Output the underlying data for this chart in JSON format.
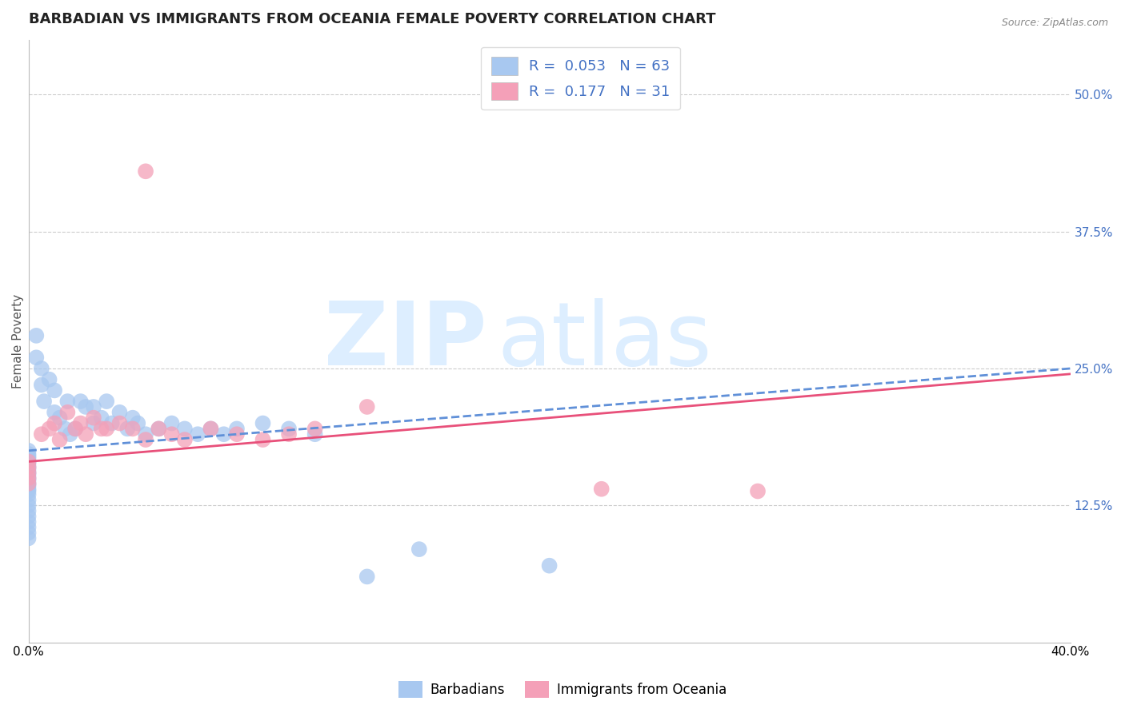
{
  "title": "BARBADIAN VS IMMIGRANTS FROM OCEANIA FEMALE POVERTY CORRELATION CHART",
  "source": "Source: ZipAtlas.com",
  "ylabel": "Female Poverty",
  "right_yticks": [
    "50.0%",
    "37.5%",
    "25.0%",
    "12.5%"
  ],
  "right_ytick_vals": [
    0.5,
    0.375,
    0.25,
    0.125
  ],
  "xmin": 0.0,
  "xmax": 0.4,
  "ymin": 0.0,
  "ymax": 0.55,
  "color_blue": "#A8C8F0",
  "color_pink": "#F4A0B8",
  "color_blue_line": "#6090D8",
  "color_pink_line": "#E8507A",
  "color_blue_text": "#4472C4",
  "background_color": "#FFFFFF",
  "grid_color": "#CCCCCC",
  "title_fontsize": 13,
  "axis_label_fontsize": 11,
  "tick_fontsize": 11,
  "barbadians_x": [
    0.0,
    0.0,
    0.0,
    0.0,
    0.0,
    0.0,
    0.0,
    0.0,
    0.0,
    0.0,
    0.0,
    0.0,
    0.0,
    0.0,
    0.0,
    0.0,
    0.0,
    0.0,
    0.0,
    0.0,
    0.0,
    0.0,
    0.0,
    0.0,
    0.0,
    0.003,
    0.003,
    0.005,
    0.005,
    0.006,
    0.008,
    0.01,
    0.01,
    0.012,
    0.014,
    0.015,
    0.016,
    0.018,
    0.02,
    0.022,
    0.025,
    0.025,
    0.028,
    0.03,
    0.032,
    0.035,
    0.038,
    0.04,
    0.042,
    0.045,
    0.05,
    0.055,
    0.06,
    0.065,
    0.07,
    0.075,
    0.08,
    0.09,
    0.1,
    0.11,
    0.13,
    0.15,
    0.2
  ],
  "barbadians_y": [
    0.175,
    0.172,
    0.17,
    0.168,
    0.165,
    0.163,
    0.16,
    0.158,
    0.155,
    0.153,
    0.15,
    0.148,
    0.145,
    0.143,
    0.14,
    0.138,
    0.135,
    0.13,
    0.125,
    0.12,
    0.115,
    0.11,
    0.105,
    0.1,
    0.095,
    0.28,
    0.26,
    0.25,
    0.235,
    0.22,
    0.24,
    0.23,
    0.21,
    0.205,
    0.195,
    0.22,
    0.19,
    0.195,
    0.22,
    0.215,
    0.215,
    0.2,
    0.205,
    0.22,
    0.2,
    0.21,
    0.195,
    0.205,
    0.2,
    0.19,
    0.195,
    0.2,
    0.195,
    0.19,
    0.195,
    0.19,
    0.195,
    0.2,
    0.195,
    0.19,
    0.06,
    0.085,
    0.07
  ],
  "oceania_x": [
    0.0,
    0.0,
    0.0,
    0.0,
    0.0,
    0.005,
    0.008,
    0.01,
    0.012,
    0.015,
    0.018,
    0.02,
    0.022,
    0.025,
    0.028,
    0.03,
    0.035,
    0.04,
    0.045,
    0.05,
    0.055,
    0.06,
    0.07,
    0.08,
    0.09,
    0.1,
    0.11,
    0.13,
    0.045,
    0.22,
    0.28
  ],
  "oceania_y": [
    0.165,
    0.16,
    0.155,
    0.15,
    0.145,
    0.19,
    0.195,
    0.2,
    0.185,
    0.21,
    0.195,
    0.2,
    0.19,
    0.205,
    0.195,
    0.195,
    0.2,
    0.195,
    0.185,
    0.195,
    0.19,
    0.185,
    0.195,
    0.19,
    0.185,
    0.19,
    0.195,
    0.215,
    0.43,
    0.14,
    0.138
  ],
  "line_blue_start_y": 0.175,
  "line_blue_end_y": 0.25,
  "line_pink_start_y": 0.165,
  "line_pink_end_y": 0.245
}
